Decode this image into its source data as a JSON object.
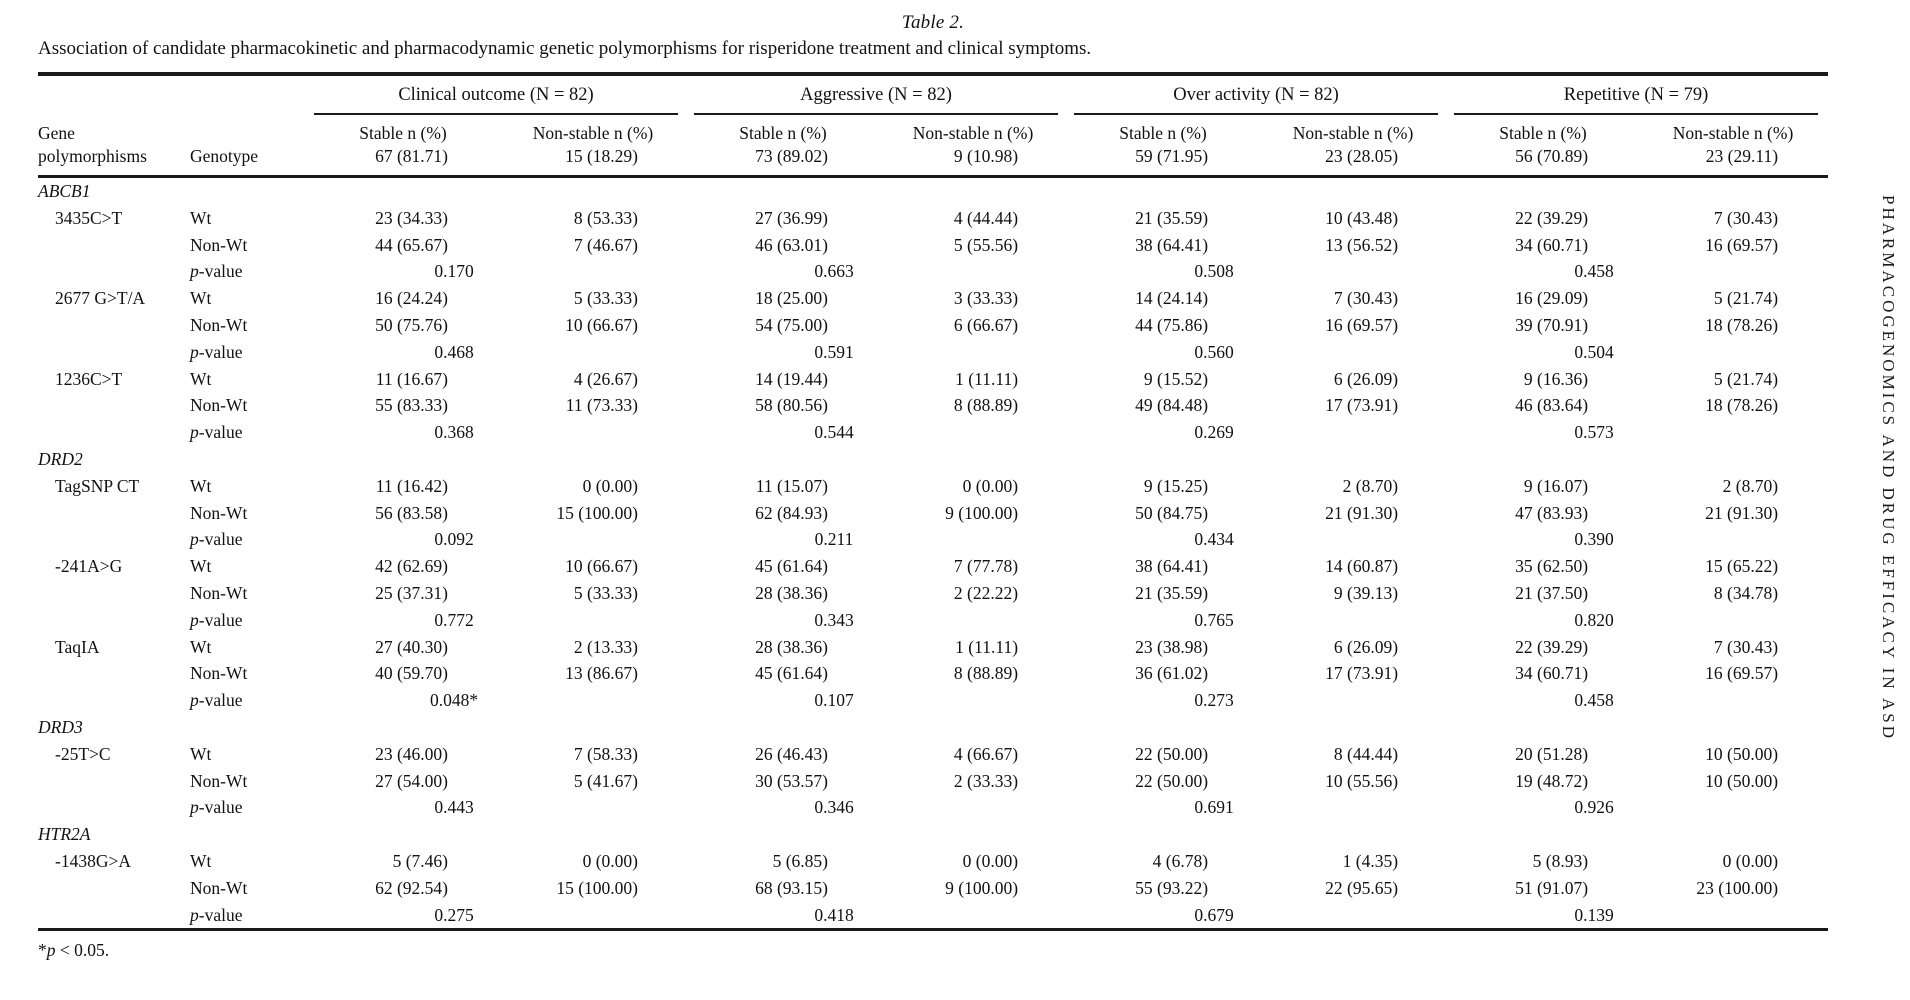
{
  "title": "Table 2.",
  "caption": "Association of candidate pharmacokinetic and pharmacodynamic genetic polymorphisms for risperidone treatment and clinical symptoms.",
  "sidebar_vertical_text": "PHARMACOGENOMICS AND DRUG EFFICACY IN ASD",
  "footnote": {
    "star": "*",
    "p": "p",
    "rest": " < 0.05."
  },
  "columns": {
    "gene_line1": "Gene",
    "gene_line2": "polymorphisms",
    "genotype": "Genotype",
    "stable_label": "Stable n (%)",
    "nonstable_label": "Non-stable n (%)"
  },
  "groups": [
    {
      "title": "Clinical outcome (N = 82)",
      "stable_total": "67 (81.71)",
      "nonstable_total": "15 (18.29)"
    },
    {
      "title": "Aggressive (N = 82)",
      "stable_total": "73 (89.02)",
      "nonstable_total": "9 (10.98)"
    },
    {
      "title": "Over activity (N = 82)",
      "stable_total": "59 (71.95)",
      "nonstable_total": "23 (28.05)"
    },
    {
      "title": "Repetitive (N = 79)",
      "stable_total": "56 (70.89)",
      "nonstable_total": "23 (29.11)"
    }
  ],
  "genotype_labels": {
    "wt": "Wt",
    "nonwt": "Non-Wt",
    "p_italic": "p",
    "p_rest": "-value"
  },
  "sections": [
    {
      "gene": "ABCB1",
      "polymorphisms": [
        {
          "name": "3435C>T",
          "wt": [
            "23 (34.33)",
            "8 (53.33)",
            "27 (36.99)",
            "4 (44.44)",
            "21 (35.59)",
            "10 (43.48)",
            "22 (39.29)",
            "7 (30.43)"
          ],
          "nonwt": [
            "44 (65.67)",
            "7 (46.67)",
            "46 (63.01)",
            "5 (55.56)",
            "38 (64.41)",
            "13 (56.52)",
            "34 (60.71)",
            "16 (69.57)"
          ],
          "pvalues": [
            "0.170",
            "0.663",
            "0.508",
            "0.458"
          ]
        },
        {
          "name": "2677 G>T/A",
          "wt": [
            "16 (24.24)",
            "5 (33.33)",
            "18 (25.00)",
            "3 (33.33)",
            "14 (24.14)",
            "7 (30.43)",
            "16 (29.09)",
            "5 (21.74)"
          ],
          "nonwt": [
            "50 (75.76)",
            "10 (66.67)",
            "54 (75.00)",
            "6 (66.67)",
            "44 (75.86)",
            "16 (69.57)",
            "39 (70.91)",
            "18 (78.26)"
          ],
          "pvalues": [
            "0.468",
            "0.591",
            "0.560",
            "0.504"
          ]
        },
        {
          "name": "1236C>T",
          "wt": [
            "11 (16.67)",
            "4 (26.67)",
            "14 (19.44)",
            "1 (11.11)",
            "9 (15.52)",
            "6 (26.09)",
            "9 (16.36)",
            "5 (21.74)"
          ],
          "nonwt": [
            "55 (83.33)",
            "11 (73.33)",
            "58 (80.56)",
            "8 (88.89)",
            "49 (84.48)",
            "17 (73.91)",
            "46 (83.64)",
            "18 (78.26)"
          ],
          "pvalues": [
            "0.368",
            "0.544",
            "0.269",
            "0.573"
          ]
        }
      ]
    },
    {
      "gene": "DRD2",
      "polymorphisms": [
        {
          "name": "TagSNP CT",
          "wt": [
            "11 (16.42)",
            "0 (0.00)",
            "11 (15.07)",
            "0 (0.00)",
            "9 (15.25)",
            "2 (8.70)",
            "9 (16.07)",
            "2 (8.70)"
          ],
          "nonwt": [
            "56 (83.58)",
            "15 (100.00)",
            "62 (84.93)",
            "9 (100.00)",
            "50 (84.75)",
            "21 (91.30)",
            "47 (83.93)",
            "21 (91.30)"
          ],
          "pvalues": [
            "0.092",
            "0.211",
            "0.434",
            "0.390"
          ]
        },
        {
          "name": "-241A>G",
          "wt": [
            "42 (62.69)",
            "10 (66.67)",
            "45 (61.64)",
            "7 (77.78)",
            "38 (64.41)",
            "14 (60.87)",
            "35 (62.50)",
            "15 (65.22)"
          ],
          "nonwt": [
            "25 (37.31)",
            "5 (33.33)",
            "28 (38.36)",
            "2 (22.22)",
            "21 (35.59)",
            "9 (39.13)",
            "21 (37.50)",
            "8 (34.78)"
          ],
          "pvalues": [
            "0.772",
            "0.343",
            "0.765",
            "0.820"
          ]
        },
        {
          "name": "TaqIA",
          "wt": [
            "27 (40.30)",
            "2 (13.33)",
            "28 (38.36)",
            "1 (11.11)",
            "23 (38.98)",
            "6 (26.09)",
            "22 (39.29)",
            "7 (30.43)"
          ],
          "nonwt": [
            "40 (59.70)",
            "13 (86.67)",
            "45 (61.64)",
            "8 (88.89)",
            "36 (61.02)",
            "17 (73.91)",
            "34 (60.71)",
            "16 (69.57)"
          ],
          "pvalues": [
            "0.048*",
            "0.107",
            "0.273",
            "0.458"
          ]
        }
      ]
    },
    {
      "gene": "DRD3",
      "polymorphisms": [
        {
          "name": "-25T>C",
          "wt": [
            "23 (46.00)",
            "7 (58.33)",
            "26 (46.43)",
            "4 (66.67)",
            "22 (50.00)",
            "8 (44.44)",
            "20 (51.28)",
            "10 (50.00)"
          ],
          "nonwt": [
            "27 (54.00)",
            "5 (41.67)",
            "30 (53.57)",
            "2 (33.33)",
            "22 (50.00)",
            "10 (55.56)",
            "19 (48.72)",
            "10 (50.00)"
          ],
          "pvalues": [
            "0.443",
            "0.346",
            "0.691",
            "0.926"
          ]
        }
      ]
    },
    {
      "gene": "HTR2A",
      "polymorphisms": [
        {
          "name": "-1438G>A",
          "wt": [
            "5 (7.46)",
            "0 (0.00)",
            "5 (6.85)",
            "0 (0.00)",
            "4 (6.78)",
            "1 (4.35)",
            "5 (8.93)",
            "0 (0.00)"
          ],
          "nonwt": [
            "62 (92.54)",
            "15 (100.00)",
            "68 (93.15)",
            "9 (100.00)",
            "55 (93.22)",
            "22 (95.65)",
            "51 (91.07)",
            "23 (100.00)"
          ],
          "pvalues": [
            "0.275",
            "0.418",
            "0.679",
            "0.139"
          ]
        }
      ]
    }
  ]
}
